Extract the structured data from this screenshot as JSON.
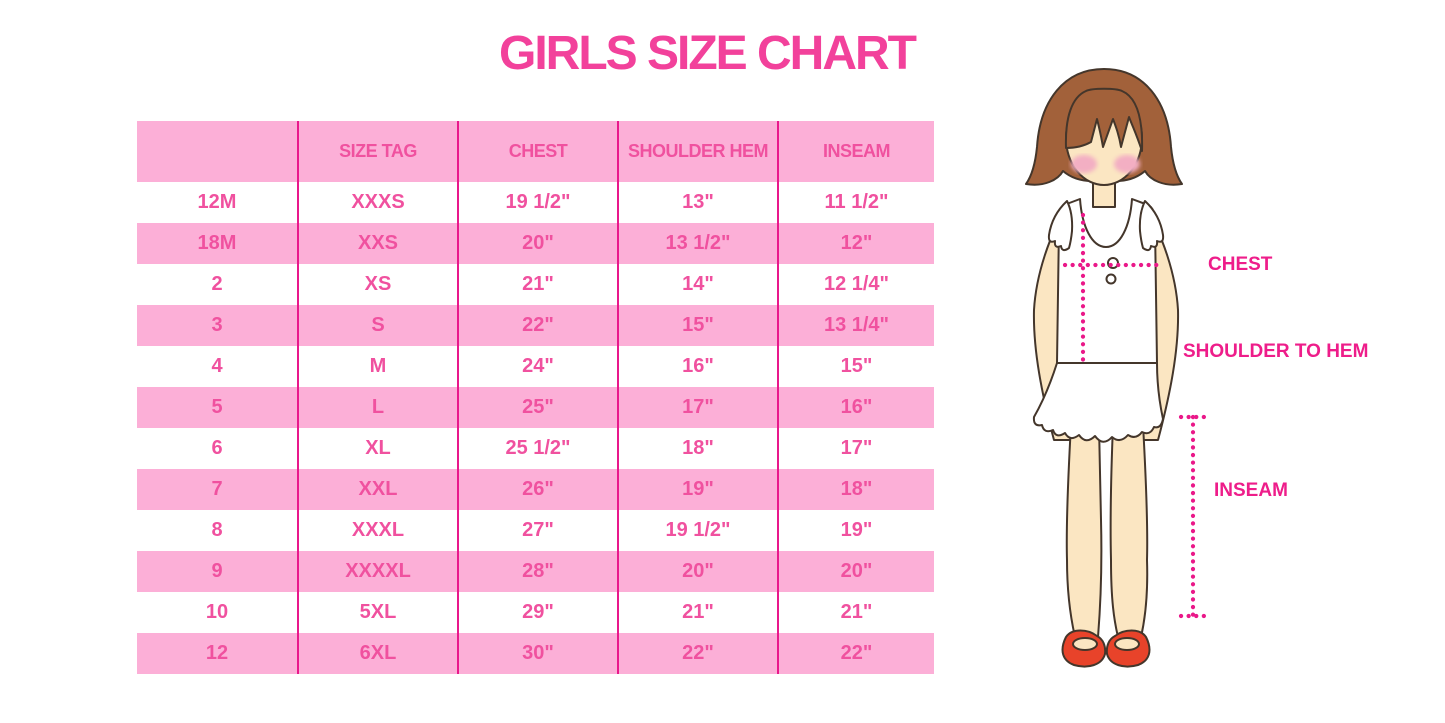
{
  "title": "GIRLS SIZE CHART",
  "colors": {
    "title_pink": "#F2419B",
    "row_pink": "#FCAFD7",
    "cell_text": "#F0519F",
    "grid_line": "#E9188C",
    "label_pink": "#EE1D8A",
    "dotted_line": "#EA1889",
    "hair_brown": "#A2613A",
    "skin": "#FBE6C2",
    "blush": "#F3AFC3",
    "shoe_red": "#E8432A",
    "outline": "#44362B",
    "garment_white": "#FFFFFF"
  },
  "table": {
    "headers": [
      "",
      "SIZE TAG",
      "CHEST",
      "SHOULDER HEM",
      "INSEAM"
    ],
    "rows": [
      [
        "12M",
        "XXXS",
        "19 1/2\"",
        "13\"",
        "11 1/2\""
      ],
      [
        "18M",
        "XXS",
        "20\"",
        "13 1/2\"",
        "12\""
      ],
      [
        "2",
        "XS",
        "21\"",
        "14\"",
        "12 1/4\""
      ],
      [
        "3",
        "S",
        "22\"",
        "15\"",
        "13 1/4\""
      ],
      [
        "4",
        "M",
        "24\"",
        "16\"",
        "15\""
      ],
      [
        "5",
        "L",
        "25\"",
        "17\"",
        "16\""
      ],
      [
        "6",
        "XL",
        "25 1/2\"",
        "18\"",
        "17\""
      ],
      [
        "7",
        "XXL",
        "26\"",
        "19\"",
        "18\""
      ],
      [
        "8",
        "XXXL",
        "27\"",
        "19 1/2\"",
        "19\""
      ],
      [
        "9",
        "XXXXL",
        "28\"",
        "20\"",
        "20\""
      ],
      [
        "10",
        "5XL",
        "29\"",
        "21\"",
        "21\""
      ],
      [
        "12",
        "6XL",
        "30\"",
        "22\"",
        "22\""
      ]
    ]
  },
  "diagram": {
    "chest_label": "CHEST",
    "shoulder_to_hem_label": "SHOULDER TO HEM",
    "inseam_label": "INSEAM"
  }
}
